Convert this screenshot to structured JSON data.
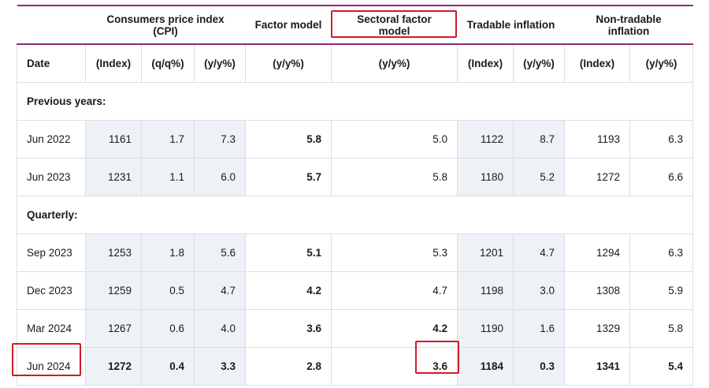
{
  "group_headers": {
    "cpi": "Consumers price index (CPI)",
    "factor": "Factor model",
    "sectoral": "Sectoral factor model",
    "tradable": "Tradable inflation",
    "nontradable": "Non-tradable inflation"
  },
  "sub_headers": [
    "Date",
    "(Index)",
    "(q/q%)",
    "(y/y%)",
    "(y/y%)",
    "(y/y%)",
    "(Index)",
    "(y/y%)",
    "(Index)",
    "(y/y%)"
  ],
  "sections": {
    "previous": "Previous years:",
    "quarterly": "Quarterly:"
  },
  "previous_rows": [
    {
      "date": "Jun 2022",
      "cpi_index": "1161",
      "cpi_qq": "1.7",
      "cpi_yy": "7.3",
      "factor": "5.8",
      "sectoral": "5.0",
      "trad_index": "1122",
      "trad_yy": "8.7",
      "nontrad_index": "1193",
      "nontrad_yy": "6.3"
    },
    {
      "date": "Jun 2023",
      "cpi_index": "1231",
      "cpi_qq": "1.1",
      "cpi_yy": "6.0",
      "factor": "5.7",
      "sectoral": "5.8",
      "trad_index": "1180",
      "trad_yy": "5.2",
      "nontrad_index": "1272",
      "nontrad_yy": "6.6"
    }
  ],
  "quarterly_rows": [
    {
      "date": "Sep 2023",
      "cpi_index": "1253",
      "cpi_qq": "1.8",
      "cpi_yy": "5.6",
      "factor": "5.1",
      "sectoral": "5.3",
      "trad_index": "1201",
      "trad_yy": "4.7",
      "nontrad_index": "1294",
      "nontrad_yy": "6.3"
    },
    {
      "date": "Dec 2023",
      "cpi_index": "1259",
      "cpi_qq": "0.5",
      "cpi_yy": "4.7",
      "factor": "4.2",
      "sectoral": "4.7",
      "trad_index": "1198",
      "trad_yy": "3.0",
      "nontrad_index": "1308",
      "nontrad_yy": "5.9"
    },
    {
      "date": "Mar 2024",
      "cpi_index": "1267",
      "cpi_qq": "0.6",
      "cpi_yy": "4.0",
      "factor": "3.6",
      "sectoral": "4.2",
      "trad_index": "1190",
      "trad_yy": "1.6",
      "nontrad_index": "1329",
      "nontrad_yy": "5.8"
    },
    {
      "date": "Jun 2024",
      "cpi_index": "1272",
      "cpi_qq": "0.4",
      "cpi_yy": "3.3",
      "factor": "2.8",
      "sectoral": "3.6",
      "trad_index": "1184",
      "trad_yy": "0.3",
      "nontrad_index": "1341",
      "nontrad_yy": "5.4"
    }
  ],
  "colors": {
    "header_rule": "#8c2a78",
    "highlight_box": "#d11a2a",
    "shaded_cell": "#eef2f7"
  }
}
